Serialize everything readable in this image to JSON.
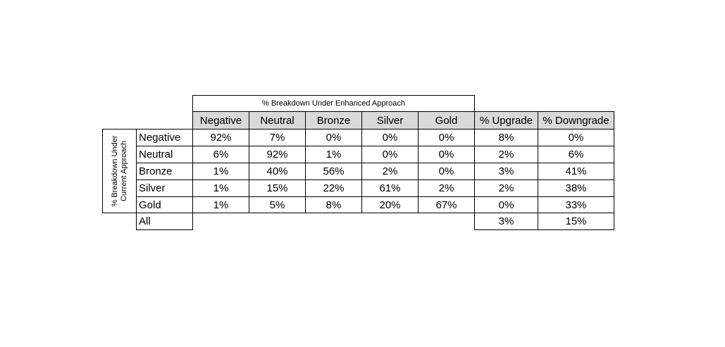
{
  "table": {
    "title": "% Breakdown Under Enhanced Approach",
    "row_title": "% Breakdown Under Current Approach",
    "columns": [
      "Negative",
      "Neutral",
      "Bronze",
      "Silver",
      "Gold",
      "% Upgrade",
      "% Downgrade"
    ],
    "rows": [
      {
        "label": "Negative",
        "cells": [
          "92%",
          "7%",
          "0%",
          "0%",
          "0%",
          "8%",
          "0%"
        ]
      },
      {
        "label": "Neutral",
        "cells": [
          "6%",
          "92%",
          "1%",
          "0%",
          "0%",
          "2%",
          "6%"
        ]
      },
      {
        "label": "Bronze",
        "cells": [
          "1%",
          "40%",
          "56%",
          "2%",
          "0%",
          "3%",
          "41%"
        ]
      },
      {
        "label": "Silver",
        "cells": [
          "1%",
          "15%",
          "22%",
          "61%",
          "2%",
          "2%",
          "38%"
        ]
      },
      {
        "label": "Gold",
        "cells": [
          "1%",
          "5%",
          "8%",
          "20%",
          "67%",
          "0%",
          "33%"
        ]
      }
    ],
    "all": {
      "label": "All",
      "upgrade": "3%",
      "downgrade": "15%"
    }
  }
}
